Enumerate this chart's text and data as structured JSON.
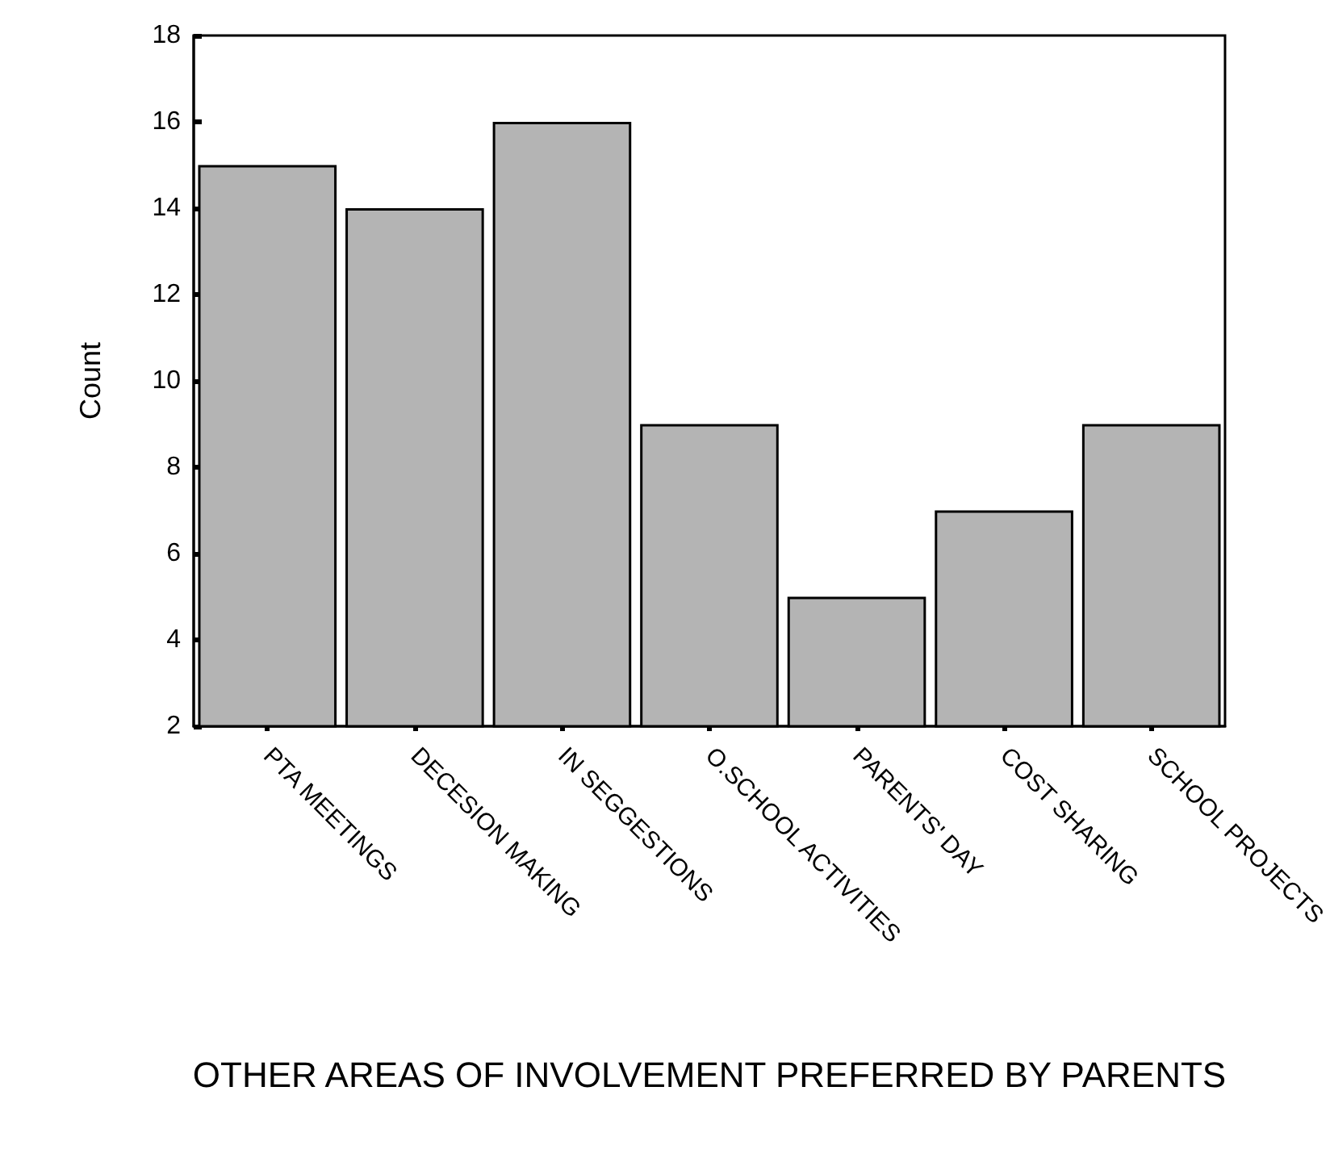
{
  "chart_data": {
    "type": "bar",
    "xlabel": "OTHER AREAS OF INVOLVEMENT PREFERRED BY PARENTS",
    "ylabel": "Count",
    "categories": [
      "PTA MEETINGS",
      "DECESION MAKING",
      "IN SEGGESTIONS",
      "O.SCHOOL ACTIVITIES",
      "PARENTS' DAY",
      "COST SHARING",
      "SCHOOL PROJECTS"
    ],
    "values": [
      15,
      14,
      16,
      9,
      5,
      7,
      9
    ],
    "color": "#b4b4b4",
    "ylim": [
      2,
      18
    ],
    "yticks": [
      2,
      4,
      6,
      8,
      10,
      12,
      14,
      16,
      18
    ],
    "grid": false
  }
}
